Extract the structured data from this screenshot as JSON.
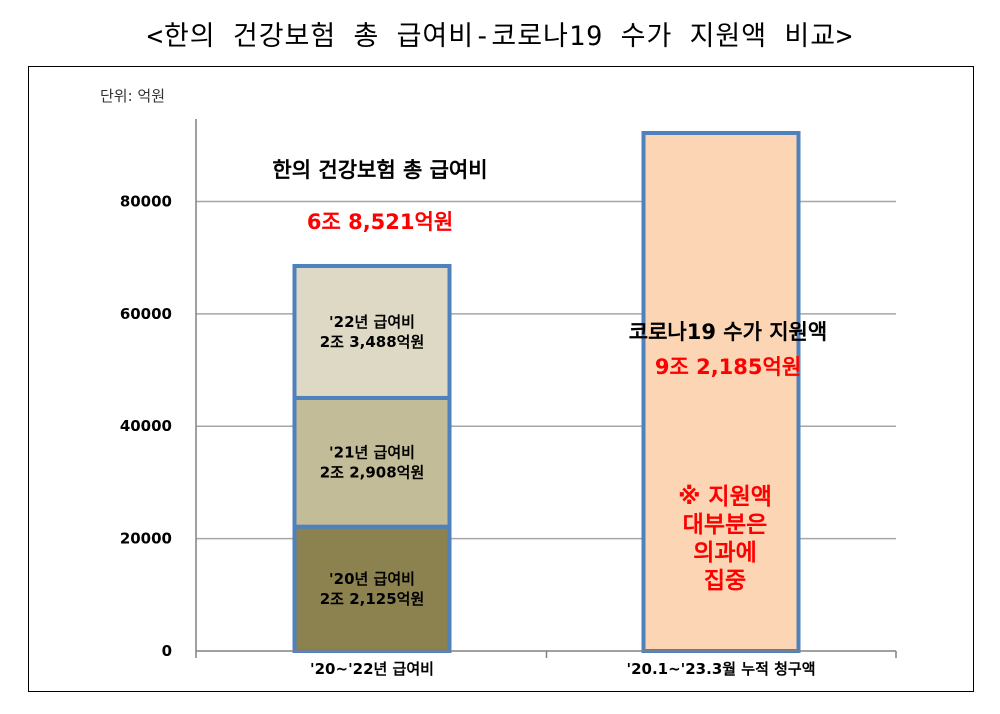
{
  "title": "<한의 건강보험 총 급여비-코로나19 수가 지원액 비교>",
  "chart_data": {
    "type": "bar",
    "stacked": true,
    "unit_label": "단위: 억원",
    "ylim": [
      0,
      92185
    ],
    "yticks": [
      0,
      20000,
      40000,
      60000,
      80000
    ],
    "categories": [
      "'20~'22년 급여비",
      "'20.1~'23.3월 누적 청구액"
    ],
    "series": [
      {
        "values": [
          22125,
          0
        ],
        "color": "#8c8250",
        "label_lines": [
          "'20년 급여비",
          "2조 2,125억원"
        ]
      },
      {
        "values": [
          22908,
          0
        ],
        "color": "#c3bc98",
        "label_lines": [
          "'21년 급여비",
          "2조 2,908억원"
        ]
      },
      {
        "values": [
          23488,
          0
        ],
        "color": "#ddd9c4",
        "label_lines": [
          "'22년 급여비",
          "2조 3,488억원"
        ]
      },
      {
        "values": [
          0,
          92185
        ],
        "color": "#fcd5b5",
        "label_lines": []
      }
    ],
    "bar_outline": "#4f81bd",
    "annotations": [
      {
        "category": 0,
        "title": "한의 건강보험 총 급여비",
        "value_text": "6조 8,521억원"
      },
      {
        "category": 1,
        "title": "코로나19 수가 지원액",
        "value_text": "9조 2,185억원"
      }
    ],
    "note_lines": [
      "※ 지원액",
      "대부분은",
      "의과에",
      "집중"
    ],
    "grid": true
  }
}
